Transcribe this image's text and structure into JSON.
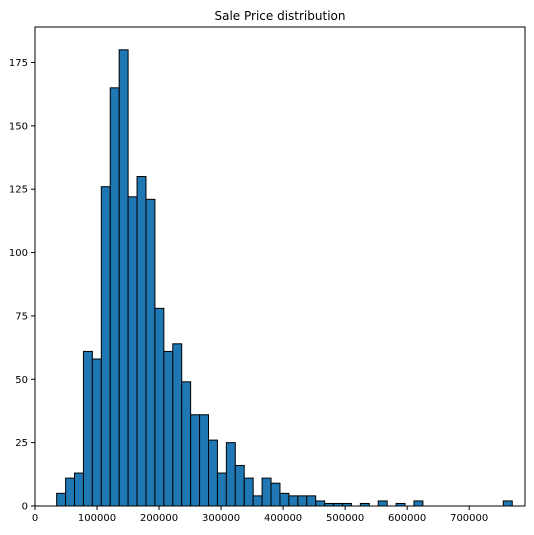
{
  "chart_data": {
    "type": "bar",
    "title": "Sale Price distribution",
    "xlabel": "",
    "ylabel": "",
    "x_ticks": [
      0,
      100000,
      200000,
      300000,
      400000,
      500000,
      600000,
      700000
    ],
    "x_tick_labels": [
      "0",
      "100000",
      "200000",
      "300000",
      "400000",
      "500000",
      "600000",
      "700000"
    ],
    "y_ticks": [
      0,
      25,
      50,
      75,
      100,
      125,
      150,
      175
    ],
    "y_tick_labels": [
      "0",
      "25",
      "50",
      "75",
      "100",
      "125",
      "150",
      "175"
    ],
    "xlim": [
      0,
      790000
    ],
    "ylim": [
      0,
      189
    ],
    "bin_start": 34900,
    "bin_width": 14402,
    "bin_counts": [
      5,
      11,
      13,
      61,
      58,
      126,
      165,
      180,
      122,
      130,
      121,
      78,
      61,
      64,
      49,
      36,
      36,
      26,
      13,
      25,
      16,
      11,
      4,
      11,
      9,
      5,
      4,
      4,
      4,
      2,
      1,
      1,
      1,
      0,
      1,
      0,
      2,
      0,
      1,
      0,
      2,
      0,
      0,
      0,
      0,
      0,
      0,
      0,
      0,
      0,
      2
    ],
    "bar_color": "#1f77b4",
    "edge_color": "#000000",
    "grid": false,
    "legend": "none"
  }
}
